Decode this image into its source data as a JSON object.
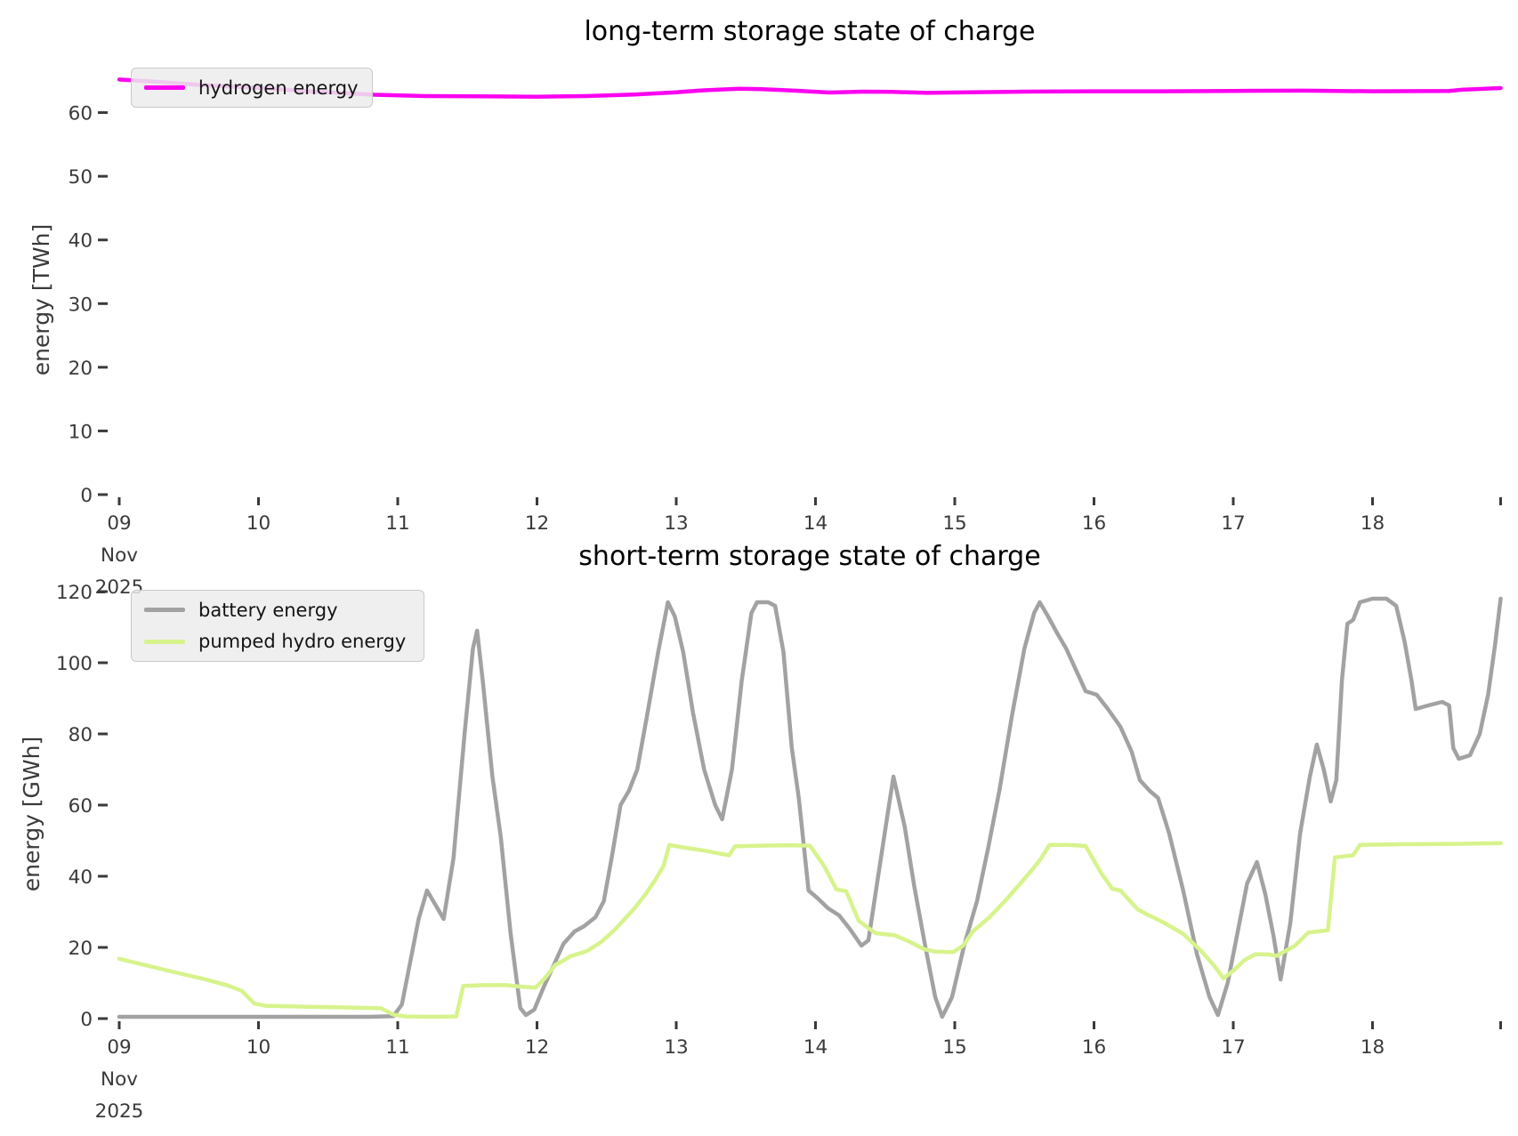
{
  "figure": {
    "background": "#ffffff",
    "tick_color": "#3a3a3a"
  },
  "chart_data": [
    {
      "type": "line",
      "id": "long-term",
      "title": "long-term storage state of charge",
      "ylabel": "energy [TWh]",
      "xlabel": "",
      "grid": false,
      "legend_position": "upper-left",
      "ylim": [
        0,
        66.5
      ],
      "xlim_days": [
        0,
        9.92
      ],
      "x_ticks": {
        "labels": [
          "09",
          "10",
          "11",
          "12",
          "13",
          "14",
          "15",
          "16",
          "17",
          "18",
          ""
        ],
        "first_sub": [
          "Nov",
          "2025"
        ]
      },
      "y_ticks": [
        0,
        10,
        20,
        30,
        40,
        50,
        60
      ],
      "legend": [
        {
          "label": "hydrogen energy",
          "color": "#fb00f0"
        }
      ],
      "series": [
        {
          "name": "hydrogen energy",
          "color": "#fb00f0",
          "width": 4.5,
          "points": [
            [
              0,
              65.2
            ],
            [
              0.3,
              64.8
            ],
            [
              0.6,
              64.3
            ],
            [
              1.0,
              63.9
            ],
            [
              1.4,
              63.3
            ],
            [
              1.83,
              62.8
            ],
            [
              2.2,
              62.6
            ],
            [
              2.6,
              62.55
            ],
            [
              3.0,
              62.5
            ],
            [
              3.35,
              62.6
            ],
            [
              3.7,
              62.85
            ],
            [
              4.0,
              63.2
            ],
            [
              4.2,
              63.5
            ],
            [
              4.45,
              63.75
            ],
            [
              4.6,
              63.7
            ],
            [
              4.85,
              63.45
            ],
            [
              5.1,
              63.15
            ],
            [
              5.35,
              63.3
            ],
            [
              5.55,
              63.25
            ],
            [
              5.8,
              63.1
            ],
            [
              6.1,
              63.2
            ],
            [
              6.5,
              63.3
            ],
            [
              7.0,
              63.35
            ],
            [
              7.5,
              63.35
            ],
            [
              8.0,
              63.4
            ],
            [
              8.5,
              63.45
            ],
            [
              9.0,
              63.35
            ],
            [
              9.55,
              63.4
            ],
            [
              9.65,
              63.6
            ],
            [
              9.92,
              63.85
            ]
          ]
        }
      ]
    },
    {
      "type": "line",
      "id": "short-term",
      "title": "short-term storage state of charge",
      "ylabel": "energy [GWh]",
      "xlabel": "",
      "grid": false,
      "legend_position": "upper-left",
      "ylim": [
        0,
        121.3
      ],
      "xlim_days": [
        0,
        9.92
      ],
      "x_ticks": {
        "labels": [
          "09",
          "10",
          "11",
          "12",
          "13",
          "14",
          "15",
          "16",
          "17",
          "18",
          ""
        ],
        "first_sub": [
          "Nov",
          "2025"
        ]
      },
      "y_ticks": [
        0,
        20,
        40,
        60,
        80,
        100,
        120
      ],
      "legend": [
        {
          "label": "battery energy",
          "color": "#a2a2a2"
        },
        {
          "label": "pumped hydro energy",
          "color": "#d7f38c"
        }
      ],
      "series": [
        {
          "name": "battery energy",
          "color": "#a2a2a2",
          "width": 4.5,
          "points": [
            [
              0,
              0.5
            ],
            [
              0.6,
              0.5
            ],
            [
              1.2,
              0.5
            ],
            [
              1.8,
              0.5
            ],
            [
              1.97,
              0.7
            ],
            [
              2.03,
              4
            ],
            [
              2.09,
              16
            ],
            [
              2.15,
              28
            ],
            [
              2.21,
              36
            ],
            [
              2.27,
              32
            ],
            [
              2.33,
              28
            ],
            [
              2.4,
              45
            ],
            [
              2.48,
              80
            ],
            [
              2.54,
              104
            ],
            [
              2.57,
              109
            ],
            [
              2.61,
              95
            ],
            [
              2.68,
              68
            ],
            [
              2.74,
              51
            ],
            [
              2.81,
              24
            ],
            [
              2.88,
              3
            ],
            [
              2.92,
              1
            ],
            [
              2.98,
              2.5
            ],
            [
              3.05,
              9
            ],
            [
              3.12,
              15
            ],
            [
              3.19,
              21
            ],
            [
              3.27,
              24.5
            ],
            [
              3.34,
              26
            ],
            [
              3.42,
              28.5
            ],
            [
              3.48,
              33
            ],
            [
              3.54,
              46
            ],
            [
              3.6,
              60
            ],
            [
              3.66,
              64
            ],
            [
              3.72,
              70
            ],
            [
              3.79,
              85
            ],
            [
              3.87,
              103
            ],
            [
              3.94,
              117
            ],
            [
              3.99,
              113
            ],
            [
              4.05,
              103
            ],
            [
              4.12,
              86
            ],
            [
              4.2,
              70
            ],
            [
              4.28,
              60
            ],
            [
              4.33,
              56
            ],
            [
              4.4,
              70
            ],
            [
              4.47,
              95
            ],
            [
              4.54,
              114
            ],
            [
              4.58,
              117
            ],
            [
              4.66,
              117
            ],
            [
              4.71,
              116
            ],
            [
              4.77,
              103
            ],
            [
              4.83,
              76
            ],
            [
              4.88,
              62
            ],
            [
              4.95,
              36
            ],
            [
              5.01,
              34
            ],
            [
              5.09,
              31
            ],
            [
              5.17,
              29
            ],
            [
              5.25,
              25
            ],
            [
              5.33,
              20.5
            ],
            [
              5.38,
              22
            ],
            [
              5.45,
              40
            ],
            [
              5.52,
              58
            ],
            [
              5.56,
              68
            ],
            [
              5.64,
              54
            ],
            [
              5.71,
              37
            ],
            [
              5.79,
              20
            ],
            [
              5.86,
              6
            ],
            [
              5.91,
              0.5
            ],
            [
              5.98,
              6
            ],
            [
              6.07,
              21
            ],
            [
              6.16,
              33
            ],
            [
              6.24,
              48
            ],
            [
              6.32,
              64
            ],
            [
              6.41,
              85
            ],
            [
              6.5,
              104
            ],
            [
              6.57,
              114
            ],
            [
              6.61,
              117
            ],
            [
              6.67,
              113
            ],
            [
              6.74,
              108
            ],
            [
              6.8,
              104
            ],
            [
              6.87,
              98
            ],
            [
              6.94,
              92
            ],
            [
              7.02,
              91
            ],
            [
              7.1,
              87
            ],
            [
              7.19,
              82
            ],
            [
              7.27,
              75
            ],
            [
              7.33,
              67
            ],
            [
              7.4,
              64
            ],
            [
              7.46,
              62
            ],
            [
              7.54,
              52
            ],
            [
              7.64,
              36
            ],
            [
              7.74,
              18
            ],
            [
              7.83,
              6
            ],
            [
              7.89,
              1
            ],
            [
              7.96,
              10
            ],
            [
              8.03,
              24
            ],
            [
              8.1,
              38
            ],
            [
              8.17,
              44
            ],
            [
              8.23,
              35
            ],
            [
              8.29,
              23
            ],
            [
              8.34,
              11
            ],
            [
              8.41,
              27
            ],
            [
              8.48,
              52
            ],
            [
              8.55,
              68
            ],
            [
              8.6,
              77
            ],
            [
              8.65,
              70
            ],
            [
              8.7,
              61
            ],
            [
              8.74,
              67
            ],
            [
              8.78,
              95
            ],
            [
              8.82,
              111
            ],
            [
              8.86,
              112
            ],
            [
              8.91,
              117
            ],
            [
              9.0,
              118
            ],
            [
              9.1,
              118
            ],
            [
              9.17,
              116
            ],
            [
              9.23,
              106
            ],
            [
              9.28,
              95
            ],
            [
              9.31,
              87
            ],
            [
              9.4,
              88
            ],
            [
              9.5,
              89
            ],
            [
              9.55,
              88
            ],
            [
              9.58,
              76
            ],
            [
              9.62,
              73
            ],
            [
              9.7,
              74
            ],
            [
              9.77,
              80
            ],
            [
              9.83,
              91
            ],
            [
              9.88,
              105
            ],
            [
              9.92,
              118
            ]
          ]
        },
        {
          "name": "pumped hydro energy",
          "color": "#d7f38c",
          "width": 4.5,
          "points": [
            [
              0,
              16.8
            ],
            [
              0.2,
              14.9
            ],
            [
              0.4,
              13
            ],
            [
              0.6,
              11.2
            ],
            [
              0.78,
              9.3
            ],
            [
              0.88,
              7.8
            ],
            [
              0.97,
              4.2
            ],
            [
              1.05,
              3.6
            ],
            [
              1.35,
              3.3
            ],
            [
              1.65,
              3.1
            ],
            [
              1.88,
              2.9
            ],
            [
              1.97,
              1.1
            ],
            [
              2.06,
              0.6
            ],
            [
              2.25,
              0.5
            ],
            [
              2.42,
              0.6
            ],
            [
              2.47,
              9.2
            ],
            [
              2.62,
              9.4
            ],
            [
              2.78,
              9.4
            ],
            [
              2.9,
              8.9
            ],
            [
              2.99,
              8.7
            ],
            [
              3.06,
              11.5
            ],
            [
              3.13,
              15
            ],
            [
              3.24,
              17.5
            ],
            [
              3.36,
              19
            ],
            [
              3.46,
              21.5
            ],
            [
              3.56,
              25
            ],
            [
              3.63,
              28
            ],
            [
              3.7,
              31
            ],
            [
              3.78,
              35
            ],
            [
              3.85,
              39
            ],
            [
              3.91,
              43
            ],
            [
              3.95,
              48.8
            ],
            [
              4.05,
              48.1
            ],
            [
              4.2,
              47.2
            ],
            [
              4.32,
              46.3
            ],
            [
              4.38,
              45.9
            ],
            [
              4.42,
              48.4
            ],
            [
              4.6,
              48.6
            ],
            [
              4.8,
              48.7
            ],
            [
              4.96,
              48.6
            ],
            [
              5.06,
              43
            ],
            [
              5.15,
              36.3
            ],
            [
              5.22,
              35.8
            ],
            [
              5.31,
              27.5
            ],
            [
              5.43,
              24
            ],
            [
              5.57,
              23.4
            ],
            [
              5.68,
              21.5
            ],
            [
              5.78,
              19.5
            ],
            [
              5.86,
              18.8
            ],
            [
              5.99,
              18.7
            ],
            [
              6.06,
              20.5
            ],
            [
              6.13,
              24.5
            ],
            [
              6.25,
              28.5
            ],
            [
              6.36,
              33
            ],
            [
              6.46,
              37.5
            ],
            [
              6.56,
              42
            ],
            [
              6.62,
              45
            ],
            [
              6.68,
              48.8
            ],
            [
              6.82,
              48.8
            ],
            [
              6.94,
              48.5
            ],
            [
              7.05,
              41
            ],
            [
              7.13,
              36.5
            ],
            [
              7.19,
              36
            ],
            [
              7.31,
              30.8
            ],
            [
              7.37,
              29.5
            ],
            [
              7.5,
              27
            ],
            [
              7.64,
              23.8
            ],
            [
              7.77,
              19
            ],
            [
              7.87,
              14.5
            ],
            [
              7.93,
              11.3
            ],
            [
              8.01,
              13.8
            ],
            [
              8.08,
              16.4
            ],
            [
              8.16,
              18.1
            ],
            [
              8.26,
              18
            ],
            [
              8.31,
              17.6
            ],
            [
              8.44,
              20.4
            ],
            [
              8.54,
              24.2
            ],
            [
              8.68,
              24.8
            ],
            [
              8.73,
              45.3
            ],
            [
              8.86,
              45.9
            ],
            [
              8.91,
              48.8
            ],
            [
              9.2,
              49
            ],
            [
              9.6,
              49.1
            ],
            [
              9.92,
              49.3
            ]
          ]
        }
      ]
    }
  ]
}
